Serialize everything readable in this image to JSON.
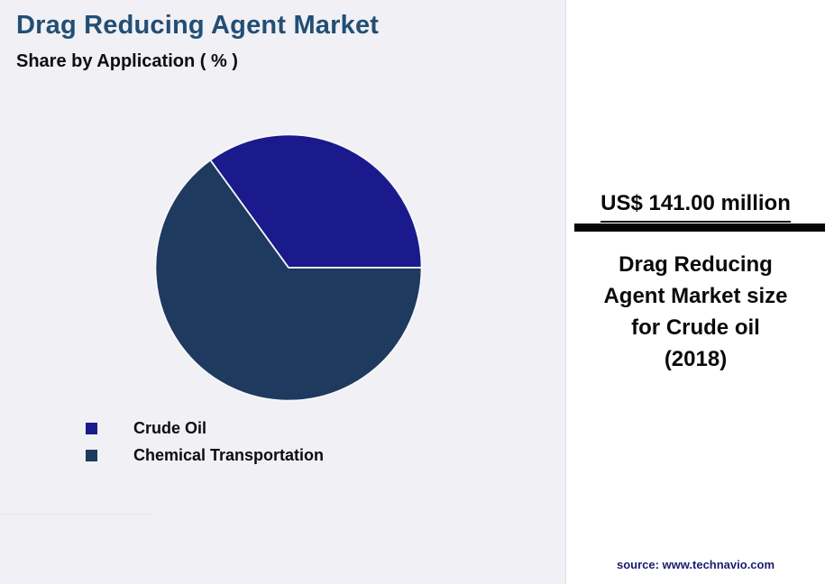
{
  "chart_data": {
    "type": "pie",
    "title": "Drag Reducing Agent Market",
    "subtitle": "Share by Application ( % )",
    "slices": [
      {
        "label": "Crude Oil",
        "value": 35,
        "color": "#1a1a8c"
      },
      {
        "label": "Chemical Transportation",
        "value": 65,
        "color": "#1f3a5f"
      }
    ],
    "start_angle_deg": 0,
    "direction": "counterclockwise",
    "legend_position": "bottom-left",
    "gridlines": false
  },
  "callout": {
    "amount": "US$ 141.00 million",
    "caption_lines": [
      "Drag Reducing",
      "Agent Market size",
      "for Crude oil",
      "(2018)"
    ],
    "source": "source: www.technavio.com"
  },
  "colors": {
    "page_background": "#f0f0f5",
    "panel_background": "#ffffff",
    "title_text": "#234e74",
    "accent_bar": "#060606",
    "source_text": "#1c1c70"
  }
}
